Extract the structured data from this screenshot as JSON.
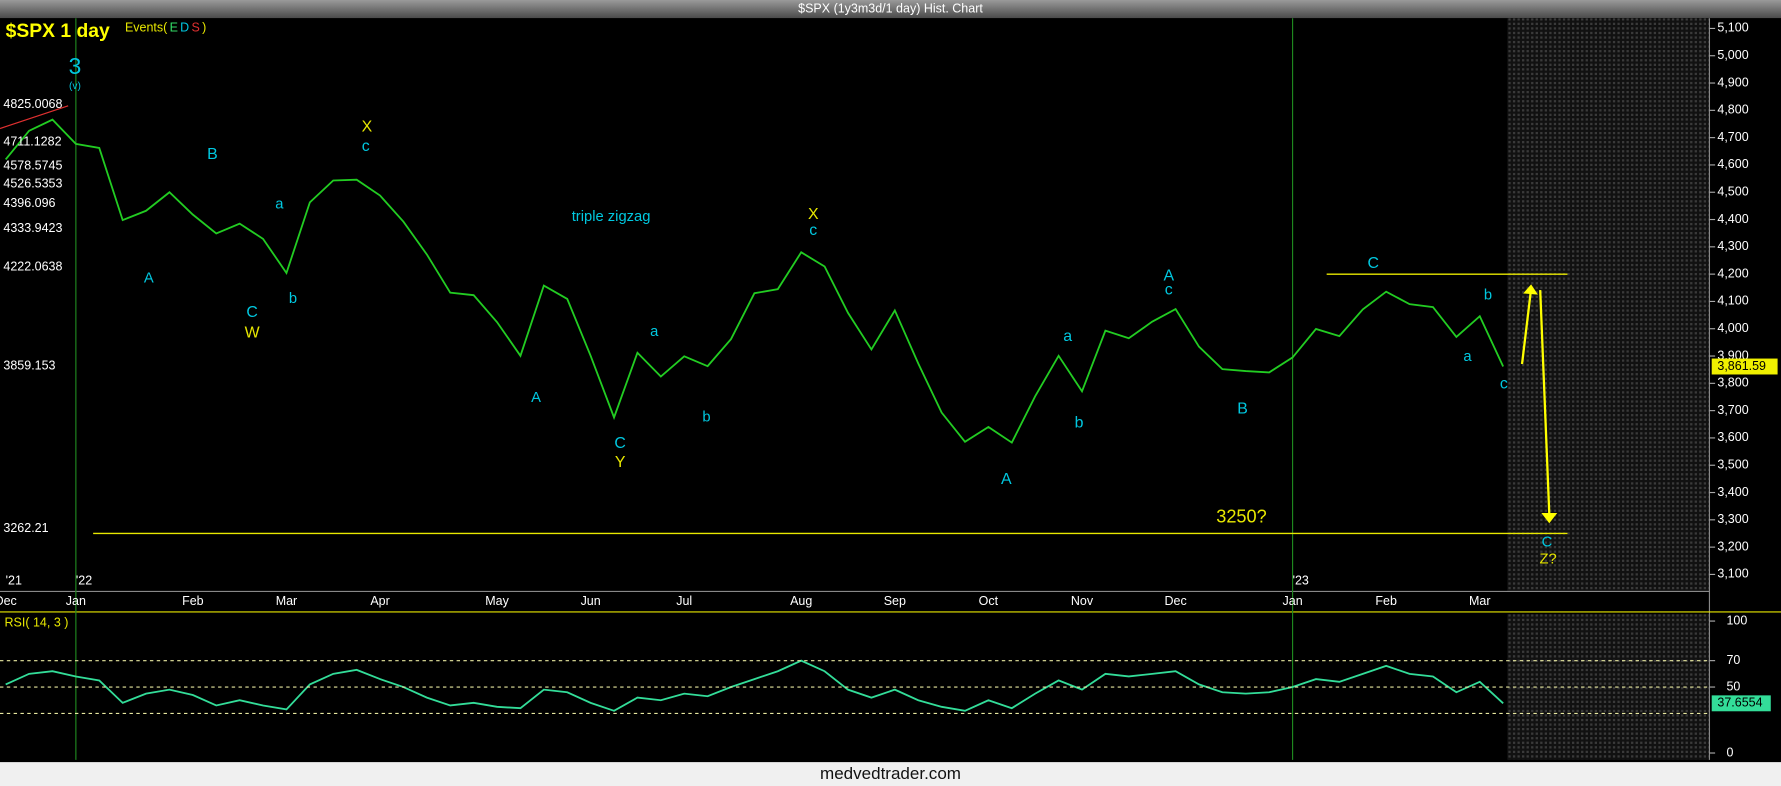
{
  "header": {
    "title": "$SPX (1y3m3d/1 day) Hist. Chart"
  },
  "footer": {
    "text": "medvedtrader.com"
  },
  "chart_data": [
    {
      "type": "line",
      "title": "$SPX 1 day",
      "events": {
        "label": "Events(",
        "flags": [
          "E",
          "D",
          "S"
        ],
        "close": ")"
      },
      "color": "#22cc22",
      "categories": [
        "Dec",
        null,
        null,
        "Jan",
        null,
        null,
        null,
        null,
        "Feb",
        null,
        null,
        null,
        "Mar",
        null,
        null,
        null,
        "Apr",
        null,
        null,
        null,
        null,
        "May",
        null,
        null,
        null,
        "Jun",
        null,
        null,
        null,
        "Jul",
        null,
        null,
        null,
        null,
        "Aug",
        null,
        null,
        null,
        "Sep",
        null,
        null,
        null,
        "Oct",
        null,
        null,
        null,
        "Nov",
        null,
        null,
        null,
        "Dec",
        null,
        null,
        null,
        null,
        "Jan",
        null,
        null,
        null,
        "Feb",
        null,
        null,
        null,
        "Mar",
        null
      ],
      "year_categories": [
        "'21",
        null,
        null,
        "'22",
        null,
        null,
        null,
        null,
        null,
        null,
        null,
        null,
        null,
        null,
        null,
        null,
        null,
        null,
        null,
        null,
        null,
        null,
        null,
        null,
        null,
        null,
        null,
        null,
        null,
        null,
        null,
        null,
        null,
        null,
        null,
        null,
        null,
        null,
        null,
        null,
        null,
        null,
        null,
        null,
        null,
        null,
        null,
        null,
        null,
        null,
        null,
        null,
        null,
        null,
        null,
        "'23",
        null,
        null,
        null,
        null,
        null,
        null,
        null,
        null,
        null
      ],
      "values": [
        4620,
        4725,
        4766,
        4677,
        4662,
        4398,
        4432,
        4500,
        4418,
        4349,
        4385,
        4329,
        4204,
        4463,
        4543,
        4546,
        4488,
        4392,
        4272,
        4132,
        4123,
        4024,
        3901,
        4158,
        4109,
        3901,
        3675,
        3912,
        3825,
        3899,
        3863,
        3962,
        4130,
        4145,
        4280,
        4228,
        4058,
        3924,
        4067,
        3873,
        3693,
        3586,
        3640,
        3583,
        3753,
        3901,
        3771,
        3993,
        3965,
        4026,
        4072,
        3934,
        3852,
        3845,
        3840,
        3895,
        3999,
        3973,
        4071,
        4136,
        4090,
        4079,
        3970,
        4046,
        3861.59
      ],
      "last_price": {
        "value": 3861.59,
        "label": "3,861.59"
      },
      "ylim": [
        3037.5,
        5137.5
      ],
      "yticks": [
        {
          "value": 3100,
          "label": "3,100"
        },
        {
          "value": 3200,
          "label": "3,200"
        },
        {
          "value": 3300,
          "label": "3,300"
        },
        {
          "value": 3400,
          "label": "3,400"
        },
        {
          "value": 3500,
          "label": "3,500"
        },
        {
          "value": 3600,
          "label": "3,600"
        },
        {
          "value": 3700,
          "label": "3,700"
        },
        {
          "value": 3800,
          "label": "3,800"
        },
        {
          "value": 3900,
          "label": "3,900"
        },
        {
          "value": 4000,
          "label": "4,000"
        },
        {
          "value": 4100,
          "label": "4,100"
        },
        {
          "value": 4200,
          "label": "4,200"
        },
        {
          "value": 4300,
          "label": "4,300"
        },
        {
          "value": 4400,
          "label": "4,400"
        },
        {
          "value": 4500,
          "label": "4,500"
        },
        {
          "value": 4600,
          "label": "4,600"
        },
        {
          "value": 4700,
          "label": "4,700"
        },
        {
          "value": 4800,
          "label": "4,800"
        },
        {
          "value": 4900,
          "label": "4,900"
        },
        {
          "value": 5000,
          "label": "5,000"
        },
        {
          "value": 5100,
          "label": "5,100"
        }
      ],
      "levels": [
        3250,
        4200
      ],
      "fib_labels": [
        "4825.0068",
        "4711.1282",
        "4578.5745",
        "4526.5353",
        "4396.096",
        "4333.9423",
        "4222.0638",
        "3859.153",
        "3262.21"
      ],
      "annotations": [
        {
          "text": "3",
          "color": "#00c8e0"
        },
        {
          "text": "(v)",
          "color": "#00c8e0"
        },
        {
          "text": "A",
          "color": "#00c8e0"
        },
        {
          "text": "B",
          "color": "#00c8e0"
        },
        {
          "text": "C",
          "color": "#00c8e0"
        },
        {
          "text": "W",
          "color": "#e8e800"
        },
        {
          "text": "a",
          "color": "#00c8e0"
        },
        {
          "text": "b",
          "color": "#00c8e0"
        },
        {
          "text": "X",
          "color": "#e8e800"
        },
        {
          "text": "c",
          "color": "#00c8e0"
        },
        {
          "text": "triple zigzag",
          "color": "#00c8e0"
        },
        {
          "text": "A",
          "color": "#00c8e0"
        },
        {
          "text": "C",
          "color": "#00c8e0"
        },
        {
          "text": "Y",
          "color": "#e8e800"
        },
        {
          "text": "a",
          "color": "#00c8e0"
        },
        {
          "text": "b",
          "color": "#00c8e0"
        },
        {
          "text": "X",
          "color": "#e8e800"
        },
        {
          "text": "c",
          "color": "#00c8e0"
        },
        {
          "text": "a",
          "color": "#00c8e0"
        },
        {
          "text": "b",
          "color": "#00c8e0"
        },
        {
          "text": "A",
          "color": "#00c8e0"
        },
        {
          "text": "A",
          "color": "#00c8e0"
        },
        {
          "text": "c",
          "color": "#00c8e0"
        },
        {
          "text": "B",
          "color": "#00c8e0"
        },
        {
          "text": "C",
          "color": "#00c8e0"
        },
        {
          "text": "a",
          "color": "#00c8e0"
        },
        {
          "text": "b",
          "color": "#00c8e0"
        },
        {
          "text": "c",
          "color": "#00c8e0"
        },
        {
          "text": "3250?",
          "color": "#e8e800"
        },
        {
          "text": "C",
          "color": "#00c8e0"
        },
        {
          "text": "Z?",
          "color": "#e8e800"
        }
      ]
    },
    {
      "type": "line",
      "title": "RSI( 14, 3 )",
      "color": "#33dd99",
      "values": [
        52,
        60,
        62,
        58,
        55,
        38,
        45,
        48,
        44,
        36,
        40,
        36,
        33,
        52,
        60,
        63,
        56,
        50,
        42,
        36,
        38,
        35,
        34,
        48,
        46,
        38,
        32,
        42,
        40,
        45,
        43,
        50,
        56,
        62,
        70,
        62,
        48,
        42,
        48,
        40,
        35,
        32,
        40,
        34,
        45,
        55,
        48,
        60,
        58,
        60,
        62,
        52,
        46,
        45,
        46,
        50,
        56,
        54,
        60,
        66,
        60,
        58,
        46,
        54,
        37.6554
      ],
      "last_value_label": "37.6554",
      "ylim": [
        0,
        100
      ],
      "yticks": [
        0,
        50,
        70,
        100
      ],
      "levels": [
        30,
        50,
        70
      ]
    }
  ]
}
